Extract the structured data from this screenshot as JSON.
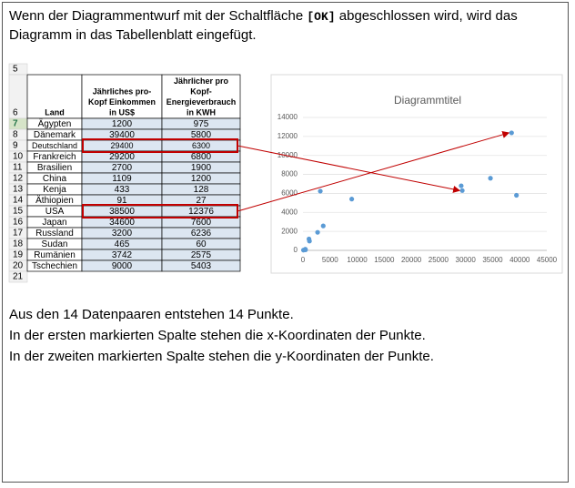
{
  "header": {
    "before": "Wenn der Diagrammentwurf mit der Schaltfläche",
    "button": "[OK]",
    "after": "abgeschlossen wird, wird das Diagramm in das Tabellenblatt eingefügt."
  },
  "table": {
    "row_numbers": [
      5,
      6,
      7,
      8,
      9,
      10,
      11,
      12,
      13,
      14,
      15,
      16,
      17,
      18,
      19,
      20,
      21
    ],
    "headers": [
      [
        "Land"
      ],
      [
        "Jährliches pro-",
        "Kopf Einkommen",
        "in US$"
      ],
      [
        "Jährlicher pro",
        "Kopf-",
        "Energieverbrauch",
        "in KWH"
      ]
    ],
    "rows": [
      [
        "Ägypten",
        1200,
        975
      ],
      [
        "Dänemark",
        39400,
        5800
      ],
      [
        "Deutschland",
        29400,
        6300
      ],
      [
        "Frankreich",
        29200,
        6800
      ],
      [
        "Brasilien",
        2700,
        1900
      ],
      [
        "China",
        1109,
        1200
      ],
      [
        "Kenja",
        433,
        128
      ],
      [
        "Äthiopien",
        91,
        27
      ],
      [
        "USA",
        38500,
        12376
      ],
      [
        "Japan",
        34600,
        7600
      ],
      [
        "Russland",
        3200,
        6236
      ],
      [
        "Sudan",
        465,
        60
      ],
      [
        "Rumänien",
        3742,
        2575
      ],
      [
        "Tschechien",
        9000,
        5403
      ]
    ]
  },
  "chart": {
    "type": "scatter",
    "title": "Diagrammtitel",
    "color": "#5b9bd5",
    "grid": true,
    "xlim": [
      0,
      45000
    ],
    "xticks": [
      0,
      5000,
      10000,
      15000,
      20000,
      25000,
      30000,
      35000,
      40000,
      45000
    ],
    "ylim": [
      0,
      14000
    ],
    "yticks": [
      0,
      2000,
      4000,
      6000,
      8000,
      10000,
      12000,
      14000
    ]
  },
  "paragraphs": [
    "Aus den 14 Datenpaaren entstehen 14 Punkte.",
    "In der ersten markierten Spalte stehen die x-Koordinaten der Punkte.",
    "In der zweiten markierten Spalte stehen die y-Koordinaten der Punkte."
  ]
}
